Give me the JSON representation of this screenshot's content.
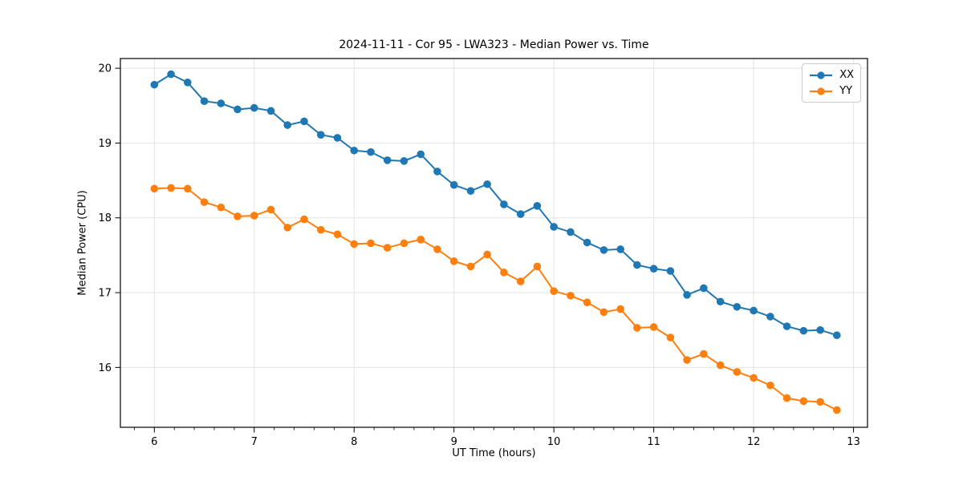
{
  "chart_data": {
    "type": "line",
    "title": "2024-11-11 - Cor 95 - LWA323 - Median Power vs. Time",
    "xlabel": "UT Time (hours)",
    "ylabel": "Median Power (CPU)",
    "xlim": [
      5.66,
      13.14
    ],
    "ylim": [
      15.2,
      20.13
    ],
    "xticks": [
      6,
      7,
      8,
      9,
      10,
      11,
      12,
      13
    ],
    "yticks": [
      16,
      17,
      18,
      19,
      20
    ],
    "x_minor_step": 0.2,
    "grid": true,
    "grid_color": "#e3e3e3",
    "frame_color": "#000000",
    "legend_position": "upper right",
    "x": [
      6.0,
      6.167,
      6.333,
      6.5,
      6.667,
      6.833,
      7.0,
      7.167,
      7.333,
      7.5,
      7.667,
      7.833,
      8.0,
      8.167,
      8.333,
      8.5,
      8.667,
      8.833,
      9.0,
      9.167,
      9.333,
      9.5,
      9.667,
      9.833,
      10.0,
      10.167,
      10.333,
      10.5,
      10.667,
      10.833,
      11.0,
      11.167,
      11.333,
      11.5,
      11.667,
      11.833,
      12.0,
      12.167,
      12.333,
      12.5,
      12.667,
      12.833
    ],
    "series": [
      {
        "name": "XX",
        "color": "#1f77b4",
        "marker": "circle",
        "values": [
          19.78,
          19.92,
          19.81,
          19.56,
          19.53,
          19.45,
          19.47,
          19.43,
          19.24,
          19.29,
          19.11,
          19.07,
          18.9,
          18.88,
          18.77,
          18.76,
          18.85,
          18.62,
          18.44,
          18.36,
          18.45,
          18.18,
          18.05,
          18.16,
          17.88,
          17.81,
          17.67,
          17.57,
          17.58,
          17.37,
          17.32,
          17.29,
          16.97,
          17.06,
          16.88,
          16.81,
          16.76,
          16.68,
          16.55,
          16.49,
          16.5,
          16.43
        ]
      },
      {
        "name": "YY",
        "color": "#ff7f0e",
        "marker": "circle",
        "values": [
          18.39,
          18.4,
          18.39,
          18.21,
          18.14,
          18.02,
          18.03,
          18.11,
          17.87,
          17.98,
          17.84,
          17.78,
          17.65,
          17.66,
          17.6,
          17.66,
          17.71,
          17.58,
          17.42,
          17.35,
          17.51,
          17.27,
          17.15,
          17.35,
          17.02,
          16.96,
          16.87,
          16.74,
          16.78,
          16.53,
          16.54,
          16.4,
          16.1,
          16.18,
          16.03,
          15.94,
          15.86,
          15.76,
          15.59,
          15.55,
          15.54,
          15.43
        ]
      }
    ]
  }
}
